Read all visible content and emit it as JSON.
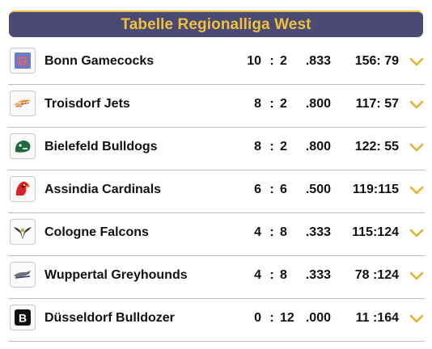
{
  "header": {
    "title": "Tabelle Regionalliga West"
  },
  "colors": {
    "header_bg": "#4a4a72",
    "accent": "#f0c040",
    "chevron": "#e3b22e"
  },
  "standings": [
    {
      "team": "Bonn Gamecocks",
      "wins": "10",
      "losses": "2",
      "pct": ".833",
      "points": "156: 79",
      "logo_icon": "gamecocks-logo-icon"
    },
    {
      "team": "Troisdorf Jets",
      "wins": "8",
      "losses": "2",
      "pct": ".800",
      "points": "117: 57",
      "logo_icon": "jets-logo-icon"
    },
    {
      "team": "Bielefeld Bulldogs",
      "wins": "8",
      "losses": "2",
      "pct": ".800",
      "points": "122: 55",
      "logo_icon": "bulldogs-logo-icon"
    },
    {
      "team": "Assindia Cardinals",
      "wins": "6",
      "losses": "6",
      "pct": ".500",
      "points": "119:115",
      "logo_icon": "cardinals-logo-icon"
    },
    {
      "team": "Cologne Falcons",
      "wins": "4",
      "losses": "8",
      "pct": ".333",
      "points": "115:124",
      "logo_icon": "falcons-logo-icon"
    },
    {
      "team": "Wuppertal Greyhounds",
      "wins": "4",
      "losses": "8",
      "pct": ".333",
      "points": "78 :124",
      "logo_icon": "greyhounds-logo-icon"
    },
    {
      "team": "Düsseldorf Bulldozer",
      "wins": "0",
      "losses": "12",
      "pct": ".000",
      "points": "11 :164",
      "logo_icon": "bulldozer-logo-icon"
    }
  ],
  "separator": ":"
}
